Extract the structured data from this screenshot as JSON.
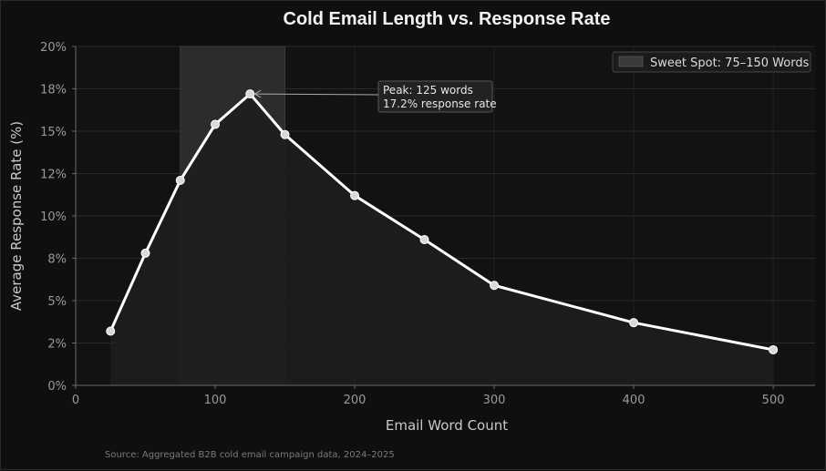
{
  "chart_data": {
    "type": "line",
    "title": "Cold Email Length vs. Response Rate",
    "xlabel": "Email Word Count",
    "ylabel": "Average Response Rate (%)",
    "xlim": [
      0,
      530
    ],
    "ylim": [
      0,
      20
    ],
    "x_ticks": [
      0,
      100,
      200,
      300,
      400,
      500
    ],
    "y_ticks": [
      0,
      2.5,
      5,
      7.5,
      10,
      12.5,
      15,
      17.5,
      20
    ],
    "y_tick_labels": [
      "0%",
      "2%",
      "5%",
      "8%",
      "10%",
      "12%",
      "15%",
      "18%",
      "20%"
    ],
    "series": [
      {
        "x": [
          25,
          50,
          75,
          100,
          125,
          150,
          200,
          250,
          300,
          400,
          500
        ],
        "values": [
          3.2,
          7.8,
          12.1,
          15.4,
          17.2,
          14.8,
          11.2,
          8.6,
          5.9,
          3.7,
          2.1
        ]
      }
    ],
    "highlight_band": {
      "x_range": [
        75,
        150
      ],
      "label": "Sweet Spot: 75–150 Words"
    },
    "annotation": {
      "x": 125,
      "y": 17.2,
      "lines": [
        "Peak: 125 words",
        "17.2% response rate"
      ]
    },
    "legend_position": "top-right",
    "grid": true,
    "source": "Source: Aggregated B2B cold email campaign data, 2024–2025",
    "colors": {
      "line": "#ffffff",
      "band": "#2c2c2c",
      "background": "#0f0f0f",
      "plot_bg": "#121212"
    }
  }
}
